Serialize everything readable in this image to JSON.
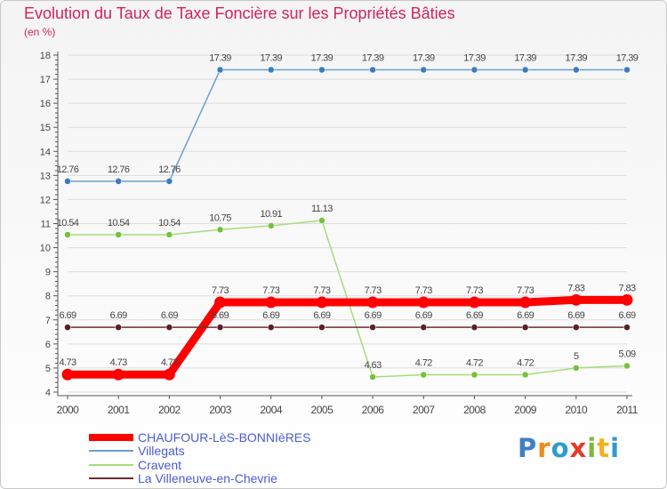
{
  "colors": {
    "title": "#d2235e",
    "legend_text": "#4a5bd6",
    "axis": "#555555",
    "grid": "#dcdcdc"
  },
  "logo": {
    "letters": [
      {
        "ch": "P",
        "color": "#3d7fc8"
      },
      {
        "ch": "r",
        "color": "#f08a1c"
      },
      {
        "ch": "o",
        "color": "#2f9ad3"
      },
      {
        "ch": "x",
        "color": "#e53a2b"
      },
      {
        "ch": "i",
        "color": "#7db93d"
      },
      {
        "ch": "t",
        "color": "#f0b21c"
      },
      {
        "ch": "i",
        "color": "#2f9ad3"
      }
    ]
  },
  "chart_data": {
    "type": "line",
    "title": "Evolution du Taux de Taxe Foncière sur les Propriétés Bâties",
    "ylabel": "(en %)",
    "xlabel": "",
    "ylim": [
      4,
      18
    ],
    "yticks": [
      "4",
      "5",
      "6",
      "7",
      "8",
      "9",
      "10",
      "11",
      "12",
      "13",
      "14",
      "15",
      "16",
      "17",
      "18"
    ],
    "categories": [
      "2000",
      "2001",
      "2002",
      "2003",
      "2004",
      "2005",
      "2006",
      "2007",
      "2008",
      "2009",
      "2010",
      "2011"
    ],
    "grid": true,
    "legend_position": "bottom-left",
    "series": [
      {
        "name": "CHAUFOUR-LèS-BONNIèRES",
        "color": "#ff0000",
        "thick": true,
        "values": [
          4.73,
          4.73,
          4.73,
          7.73,
          7.73,
          7.73,
          7.73,
          7.73,
          7.73,
          7.73,
          7.83,
          7.83
        ],
        "labels": [
          "4.73",
          "4.73",
          "4.73",
          "7.73",
          "7.73",
          "7.73",
          "7.73",
          "7.73",
          "7.73",
          "7.73",
          "7.83",
          "7.83"
        ]
      },
      {
        "name": "Villegats",
        "color": "#6b9fd0",
        "marker": "#3a7cc0",
        "values": [
          12.76,
          12.76,
          12.76,
          17.39,
          17.39,
          17.39,
          17.39,
          17.39,
          17.39,
          17.39,
          17.39,
          17.39
        ],
        "labels": [
          "12.76",
          "12.76",
          "12.76",
          "17.39",
          "17.39",
          "17.39",
          "17.39",
          "17.39",
          "17.39",
          "17.39",
          "17.39",
          "17.39"
        ]
      },
      {
        "name": "Cravent",
        "color": "#a6dc7a",
        "marker": "#74c23c",
        "values": [
          10.54,
          10.54,
          10.54,
          10.75,
          10.91,
          11.13,
          4.63,
          4.72,
          4.72,
          4.72,
          5.0,
          5.09
        ],
        "labels": [
          "10.54",
          "10.54",
          "10.54",
          "10.75",
          "10.91",
          "11.13",
          "4.63",
          "4.72",
          "4.72",
          "4.72",
          "5",
          "5.09"
        ]
      },
      {
        "name": "La Villeneuve-en-Chevrie",
        "color": "#6e2c35",
        "marker": "#5a1f27",
        "values": [
          6.69,
          6.69,
          6.69,
          6.69,
          6.69,
          6.69,
          6.69,
          6.69,
          6.69,
          6.69,
          6.69,
          6.69
        ],
        "labels": [
          "6.69",
          "6.69",
          "6.69",
          "6.69",
          "6.69",
          "6.69",
          "6.69",
          "6.69",
          "6.69",
          "6.69",
          "6.69",
          "6.69"
        ]
      }
    ]
  }
}
